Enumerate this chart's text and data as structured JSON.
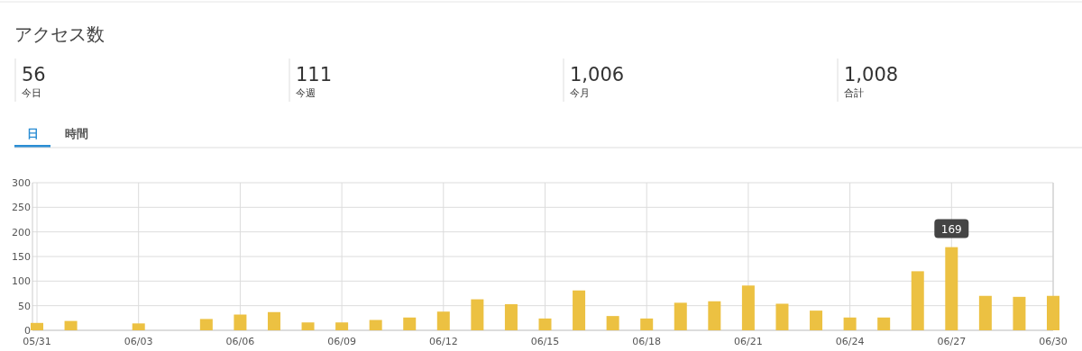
{
  "chart_data": [
    {
      "type": "other",
      "title": "アクセス数",
      "annotations": [
        "56",
        "今日",
        "111",
        "今週",
        "1,006",
        "今月",
        "1,008",
        "合計",
        "日",
        "時間"
      ]
    },
    {
      "type": "bar",
      "categories": [
        "05/31",
        null,
        null,
        "06/03",
        null,
        null,
        "06/06",
        null,
        null,
        "06/09",
        null,
        null,
        "06/12",
        null,
        null,
        "06/15",
        null,
        null,
        "06/18",
        null,
        null,
        "06/21",
        null,
        null,
        "06/24",
        null,
        null,
        "06/27",
        null,
        null,
        "06/30"
      ],
      "values": [
        15,
        19,
        0,
        14,
        0,
        23,
        32,
        37,
        16,
        16,
        21,
        26,
        38,
        63,
        53,
        24,
        81,
        29,
        24,
        56,
        59,
        91,
        54,
        40,
        26,
        26,
        120,
        169,
        70,
        68,
        70
      ],
      "value_labels": [
        null,
        null,
        null,
        null,
        null,
        null,
        null,
        null,
        null,
        null,
        null,
        null,
        null,
        null,
        null,
        null,
        null,
        null,
        null,
        null,
        null,
        null,
        null,
        null,
        null,
        null,
        null,
        "169",
        null,
        null,
        null
      ],
      "color": "#ecc142",
      "ylim": [
        0,
        300
      ],
      "yticks": [
        0,
        50,
        100,
        150,
        200,
        250,
        300
      ],
      "grid": true
    }
  ]
}
